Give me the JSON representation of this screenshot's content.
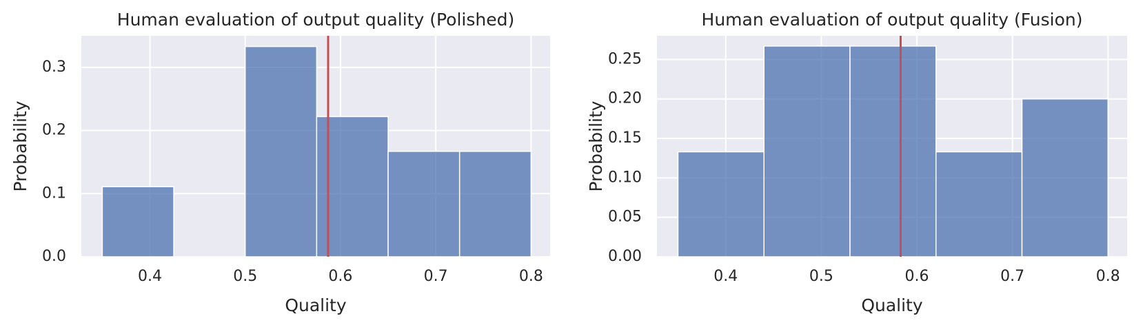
{
  "chart_data": [
    {
      "type": "bar",
      "subtype": "histogram",
      "title": "Human evaluation of output quality (Polished)",
      "xlabel": "Quality",
      "ylabel": "Probability",
      "xlim": [
        0.328,
        0.82
      ],
      "ylim": [
        0,
        0.35
      ],
      "xticks": [
        0.4,
        0.5,
        0.6,
        0.7,
        0.8
      ],
      "xtick_labels": [
        "0.4",
        "0.5",
        "0.6",
        "0.7",
        "0.8"
      ],
      "yticks": [
        0.0,
        0.1,
        0.2,
        0.3
      ],
      "ytick_labels": [
        "0.0",
        "0.1",
        "0.2",
        "0.3"
      ],
      "bins": [
        {
          "x0": 0.35,
          "x1": 0.425,
          "value": 0.111
        },
        {
          "x0": 0.425,
          "x1": 0.5,
          "value": 0.0
        },
        {
          "x0": 0.5,
          "x1": 0.575,
          "value": 0.333
        },
        {
          "x0": 0.575,
          "x1": 0.65,
          "value": 0.222
        },
        {
          "x0": 0.65,
          "x1": 0.725,
          "value": 0.167
        },
        {
          "x0": 0.725,
          "x1": 0.8,
          "value": 0.167
        }
      ],
      "mean_line": 0.587,
      "grid": true,
      "colors": {
        "bar": "#4C72B0",
        "mean_line": "#C44E52",
        "background": "#EAEAF2"
      }
    },
    {
      "type": "bar",
      "subtype": "histogram",
      "title": "Human evaluation of output quality (Fusion)",
      "xlabel": "Quality",
      "ylabel": "Probability",
      "xlim": [
        0.328,
        0.82
      ],
      "ylim": [
        0,
        0.28
      ],
      "xticks": [
        0.4,
        0.5,
        0.6,
        0.7,
        0.8
      ],
      "xtick_labels": [
        "0.4",
        "0.5",
        "0.6",
        "0.7",
        "0.8"
      ],
      "yticks": [
        0.0,
        0.05,
        0.1,
        0.15,
        0.2,
        0.25
      ],
      "ytick_labels": [
        "0.00",
        "0.05",
        "0.10",
        "0.15",
        "0.20",
        "0.25"
      ],
      "bins": [
        {
          "x0": 0.35,
          "x1": 0.44,
          "value": 0.133
        },
        {
          "x0": 0.44,
          "x1": 0.53,
          "value": 0.267
        },
        {
          "x0": 0.53,
          "x1": 0.62,
          "value": 0.267
        },
        {
          "x0": 0.62,
          "x1": 0.71,
          "value": 0.133
        },
        {
          "x0": 0.71,
          "x1": 0.8,
          "value": 0.2
        }
      ],
      "mean_line": 0.583,
      "grid": true,
      "colors": {
        "bar": "#4C72B0",
        "mean_line": "#C44E52",
        "background": "#EAEAF2"
      }
    }
  ]
}
